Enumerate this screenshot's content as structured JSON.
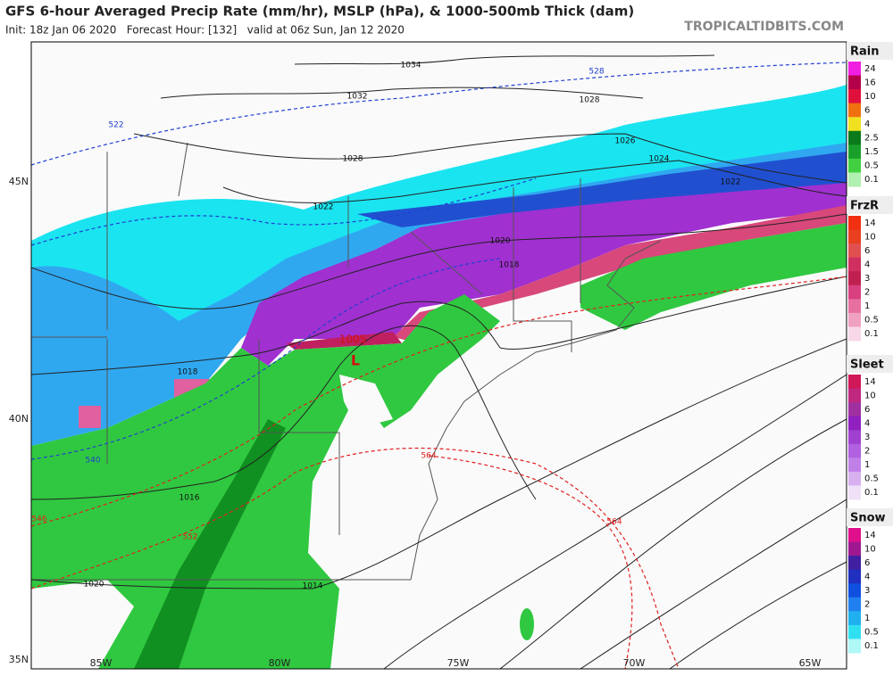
{
  "header": {
    "title": "GFS 6-hour Averaged Precip Rate (mm/hr), MSLP (hPa), & 1000-500mb Thick (dam)",
    "subtitle": "Init: 18z Jan 06 2020   Forecast Hour: [132]   valid at 06z Sun, Jan 12 2020",
    "site": "TROPICALTIDBITS.COM"
  },
  "legends": [
    {
      "title": "Rain",
      "labels": [
        "24",
        "16",
        "10",
        "6",
        "4",
        "2.5",
        "1.5",
        "0.5",
        "0.1"
      ],
      "colors": [
        "#f01ee0",
        "#b4004a",
        "#e0103c",
        "#f07010",
        "#f0e020",
        "#0a7a1a",
        "#1aa02a",
        "#40d040",
        "#b0f0b0"
      ]
    },
    {
      "title": "FrzR",
      "labels": [
        "14",
        "10",
        "6",
        "4",
        "3",
        "2",
        "1",
        "0.5",
        "0.1"
      ],
      "colors": [
        "#f03010",
        "#e84020",
        "#e05050",
        "#d03060",
        "#c02050",
        "#d84080",
        "#e870a0",
        "#f0a0c0",
        "#f8d8e8"
      ]
    },
    {
      "title": "Sleet",
      "labels": [
        "14",
        "10",
        "6",
        "4",
        "3",
        "2",
        "1",
        "0.5",
        "0.1"
      ],
      "colors": [
        "#d01858",
        "#c02880",
        "#a030a0",
        "#9020c0",
        "#a040d0",
        "#b060e0",
        "#c080e8",
        "#d8b0f0",
        "#f0e0f8"
      ]
    },
    {
      "title": "Snow",
      "labels": [
        "14",
        "10",
        "6",
        "4",
        "3",
        "2",
        "1",
        "0.5",
        "0.1"
      ],
      "colors": [
        "#e0108c",
        "#a01890",
        "#4020a0",
        "#2030c0",
        "#1050e0",
        "#2080f0",
        "#20b0f0",
        "#30e0f0",
        "#b0f8f8"
      ]
    }
  ],
  "axes": {
    "lon": [
      "85W",
      "80W",
      "75W",
      "70W",
      "65W"
    ],
    "lat": [
      "45N",
      "40N",
      "35N"
    ]
  },
  "contours": {
    "isobars": [
      "1034",
      "1032",
      "1028",
      "1028",
      "1026",
      "1024",
      "1022",
      "1022",
      "1020",
      "1018",
      "1018",
      "1016",
      "1014",
      "1020"
    ],
    "thickness": [
      {
        "label": "528",
        "color": "#2040d0"
      },
      {
        "label": "522",
        "color": "#2040d0"
      },
      {
        "label": "540",
        "color": "#2040d0"
      },
      {
        "label": "546",
        "color": "#e02020"
      },
      {
        "label": "552",
        "color": "#e02020"
      },
      {
        "label": "564",
        "color": "#e02020"
      },
      {
        "label": "564",
        "color": "#e02020"
      }
    ],
    "low": {
      "symbol": "L",
      "pressure": "1005"
    }
  }
}
